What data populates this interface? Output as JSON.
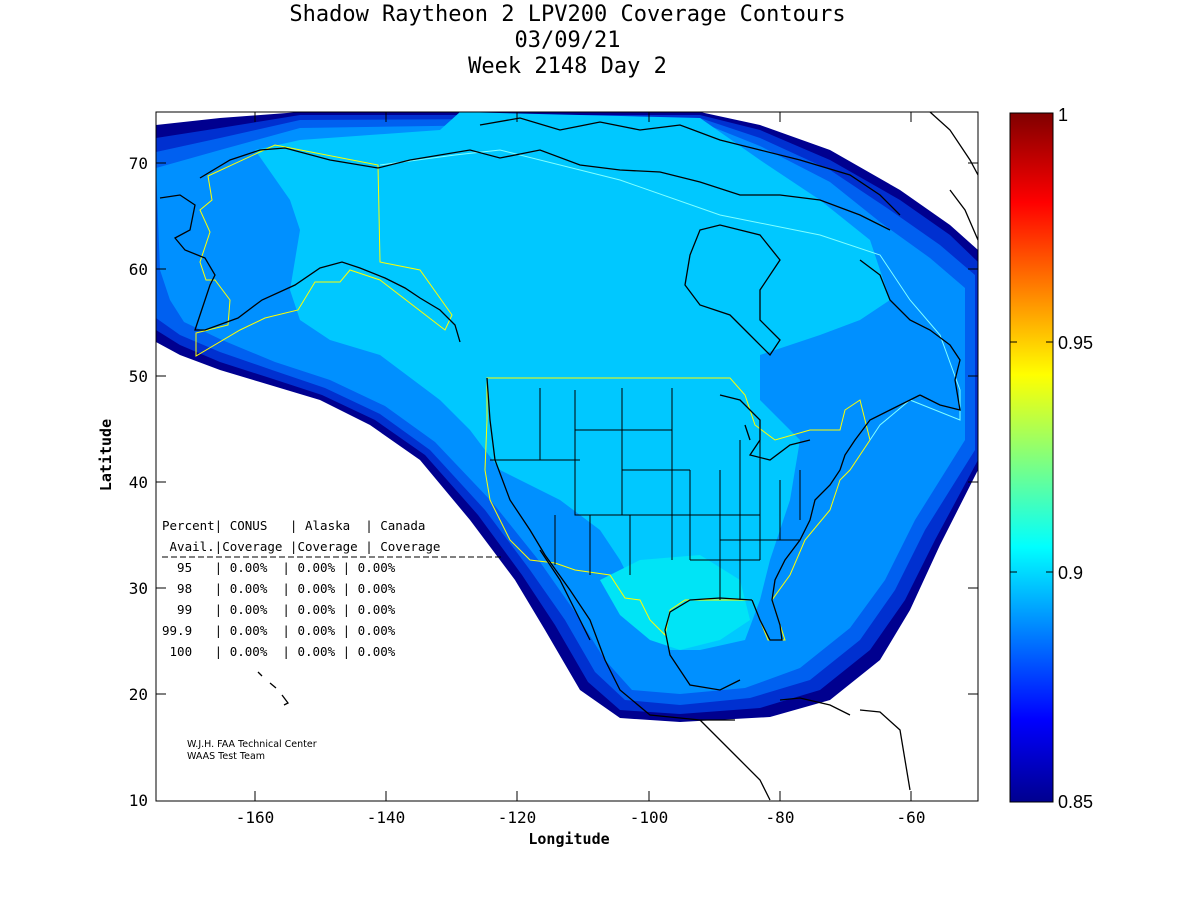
{
  "title": {
    "line1": "Shadow Raytheon 2 LPV200 Coverage Contours",
    "line2": "03/09/21",
    "line3": "Week 2148 Day 2"
  },
  "axes": {
    "xlabel": "Longitude",
    "ylabel": "Latitude",
    "xticks": [
      "-160",
      "-140",
      "-120",
      "-100",
      "-80",
      "-60"
    ],
    "yticks": [
      "70",
      "60",
      "50",
      "40",
      "30",
      "20",
      "10"
    ],
    "xlim": [
      -175,
      -50
    ],
    "ylim": [
      10,
      75
    ]
  },
  "colorbar": {
    "labels": [
      "1",
      "0.95",
      "0.9",
      "0.85"
    ],
    "range": [
      0.85,
      1
    ]
  },
  "table": {
    "header1": "Percent| CONUS   | Alaska  | Canada",
    "header2": " Avail.|Coverage |Coverage | Coverage",
    "rows": [
      "  95   | 0.00%  | 0.00% | 0.00%",
      "  98   | 0.00%  | 0.00% | 0.00%",
      "  99   | 0.00%  | 0.00% | 0.00%",
      "99.9   | 0.00%  | 0.00% | 0.00%",
      " 100   | 0.00%  | 0.00% | 0.00%"
    ]
  },
  "credit": {
    "line1": "W.J.H. FAA Technical Center",
    "line2": "WAAS Test Team"
  },
  "colors": {
    "level_0": "#00008f",
    "level_1": "#0030d0",
    "level_2": "#0060f0",
    "level_3": "#0090ff",
    "level_4": "#00c8ff",
    "level_5": "#00e4f6",
    "boundary": "#ffff00",
    "coast": "#000000"
  }
}
